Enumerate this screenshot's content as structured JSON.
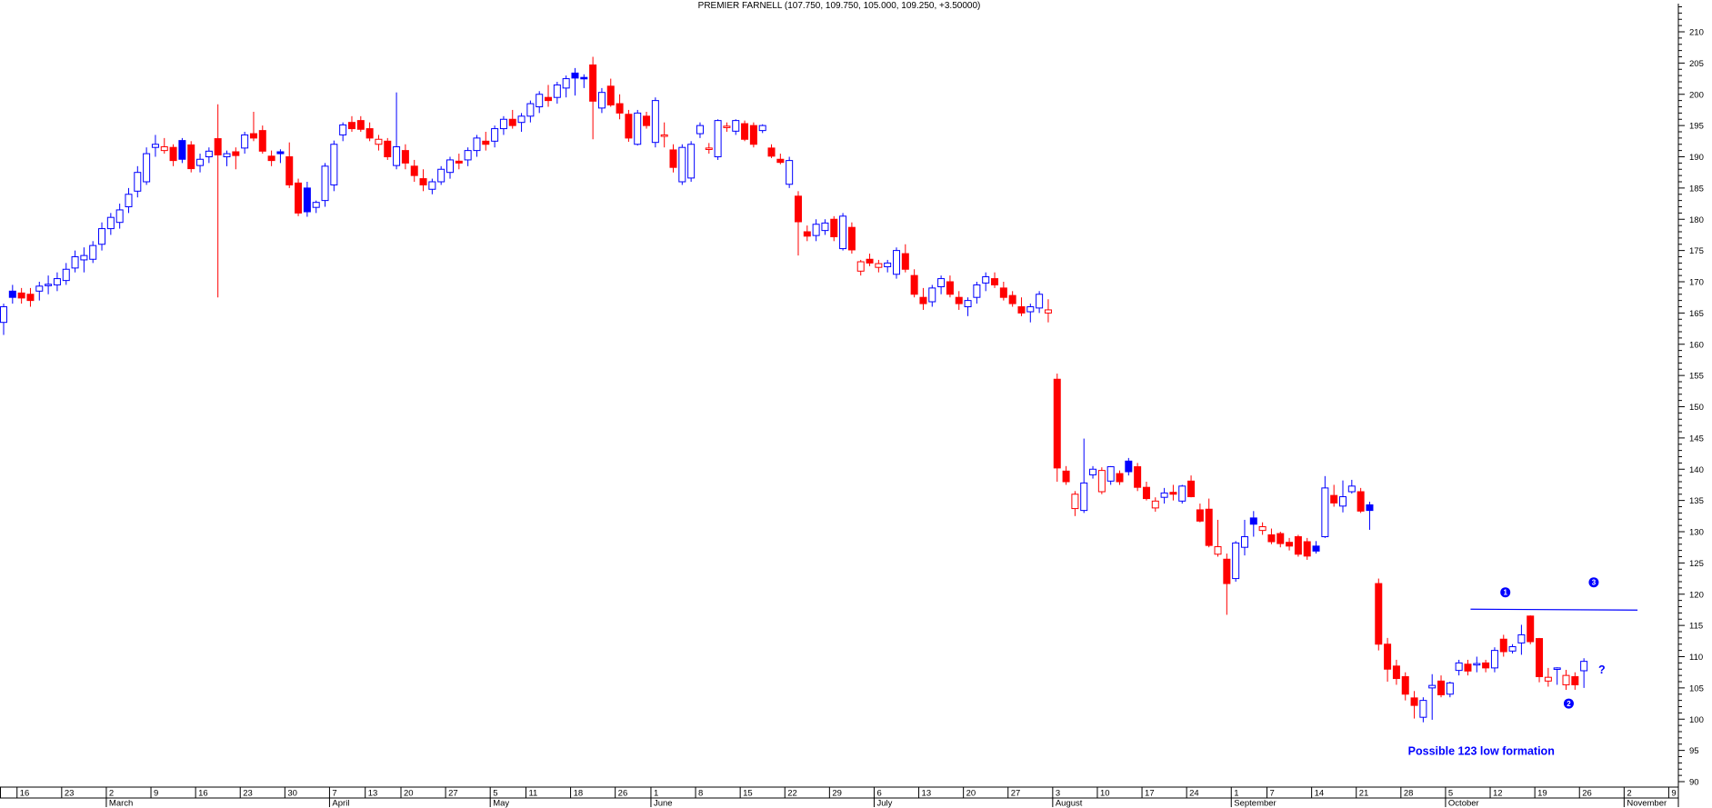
{
  "title": "PREMIER FARNELL (107.750, 109.750, 105.000, 109.250, +3.50000)",
  "colors": {
    "up": "#0000ff",
    "down": "#ff0000",
    "axis": "#000000",
    "background": "#ffffff",
    "annotation": "#0000ff"
  },
  "y_axis": {
    "labels": [
      "210",
      "205",
      "200",
      "195",
      "190",
      "185",
      "180",
      "175",
      "170",
      "165",
      "160",
      "155",
      "150",
      "145",
      "140",
      "135",
      "130",
      "125",
      "120",
      "115",
      "110",
      "105",
      "100",
      "95",
      "90"
    ],
    "max_price": 210,
    "min_price": 90,
    "major_step": 5,
    "minor_step": 1
  },
  "x_axis": {
    "week_labels": [
      "16",
      "23",
      "2",
      "9",
      "16",
      "23",
      "30",
      "7",
      "13",
      "20",
      "27",
      "5",
      "11",
      "18",
      "26",
      "1",
      "8",
      "15",
      "22",
      "29",
      "6",
      "13",
      "20",
      "27",
      "3",
      "10",
      "17",
      "24",
      "1",
      "7",
      "14",
      "21",
      "28",
      "5",
      "12",
      "19",
      "26",
      "2",
      "9"
    ],
    "week_start_indices": [
      2,
      7,
      12,
      17,
      22,
      27,
      32,
      37,
      41,
      45,
      50,
      55,
      59,
      64,
      69,
      73,
      78,
      83,
      88,
      93,
      98,
      103,
      108,
      113,
      118,
      123,
      128,
      133,
      138,
      142,
      147,
      152,
      157,
      162,
      167,
      172,
      177,
      182,
      187
    ],
    "months": [
      {
        "label": "March",
        "week_index": 2
      },
      {
        "label": "April",
        "week_index": 7
      },
      {
        "label": "May",
        "week_index": 11
      },
      {
        "label": "June",
        "week_index": 15
      },
      {
        "label": "July",
        "week_index": 20
      },
      {
        "label": "August",
        "week_index": 24
      },
      {
        "label": "September",
        "week_index": 28
      },
      {
        "label": "October",
        "week_index": 33
      },
      {
        "label": "November",
        "week_index": 37
      }
    ]
  },
  "annotations": {
    "resistance_line": {
      "from_index": 164.3,
      "to_index": 183,
      "price": 117.6
    },
    "markers": [
      {
        "label": "1",
        "index": 168.2,
        "price": 120.3
      },
      {
        "label": "3",
        "index": 178.1,
        "price": 121.9
      },
      {
        "label": "2",
        "index": 175.3,
        "price": 102.5
      }
    ],
    "question_mark": {
      "text": "?",
      "index": 179,
      "price": 107.9
    },
    "note": {
      "text": "Possible 123 low formation",
      "index": 157.3,
      "price": 94.9
    }
  },
  "chart_data": {
    "type": "candlestick",
    "symbol": "PREMIER FARNELL",
    "last_values": {
      "open": 107.75,
      "high": 109.75,
      "low": 105.0,
      "close": 109.25,
      "change": 3.5
    },
    "ohlc": [
      [
        163.5,
        166.5,
        161.5,
        166
      ],
      [
        168.5,
        169.5,
        166.5,
        167.5
      ],
      [
        168.2,
        169,
        166.5,
        167.4
      ],
      [
        168,
        169,
        166,
        167
      ],
      [
        168.5,
        170,
        167,
        169.3
      ],
      [
        169.4,
        171,
        168,
        169.6
      ],
      [
        169.5,
        171.5,
        168.5,
        170.5
      ],
      [
        170.2,
        173,
        169.5,
        172
      ],
      [
        172.2,
        175,
        171.5,
        174
      ],
      [
        173.5,
        175.5,
        171.5,
        174.2
      ],
      [
        173.6,
        176.5,
        173,
        175.8
      ],
      [
        176,
        179.5,
        175,
        178.5
      ],
      [
        178.5,
        181,
        177.5,
        180.3
      ],
      [
        179.5,
        182.5,
        178.5,
        181.5
      ],
      [
        182,
        185,
        181,
        184
      ],
      [
        184.5,
        188.5,
        183.5,
        187.5
      ],
      [
        186,
        191.5,
        185.5,
        190.5
      ],
      [
        191.5,
        193.5,
        190,
        192
      ],
      [
        191,
        193,
        190.5,
        191.6
      ],
      [
        191.5,
        192,
        188.5,
        189.4
      ],
      [
        192.6,
        193,
        189,
        189.6
      ],
      [
        191.9,
        192.5,
        187.5,
        188.1
      ],
      [
        188.6,
        190.5,
        187.5,
        189.6
      ],
      [
        190,
        191.5,
        189,
        190.9
      ],
      [
        192.9,
        198.4,
        167.5,
        190.3
      ],
      [
        190,
        191,
        188.5,
        190.5
      ],
      [
        190.8,
        191.5,
        188,
        190.2
      ],
      [
        191.4,
        194,
        190.5,
        193.5
      ],
      [
        193.7,
        197.2,
        192.5,
        193
      ],
      [
        194.2,
        195,
        190.5,
        190.9
      ],
      [
        190.1,
        191,
        188.5,
        189.4
      ],
      [
        190.8,
        191.2,
        189,
        190.5
      ],
      [
        190,
        192.3,
        185,
        185.5
      ],
      [
        185.8,
        186.5,
        180.5,
        181
      ],
      [
        185,
        186,
        180.4,
        181.2
      ],
      [
        181.9,
        183,
        181,
        182.7
      ],
      [
        183,
        189,
        182,
        188.5
      ],
      [
        185.5,
        192.6,
        184.5,
        192
      ],
      [
        193.5,
        195.5,
        192.5,
        195.1
      ],
      [
        195.5,
        196.5,
        194,
        194.5
      ],
      [
        195.8,
        196.5,
        194,
        194.4
      ],
      [
        194.5,
        195.5,
        192.5,
        193
      ],
      [
        192,
        193.5,
        191,
        192.8
      ],
      [
        192.5,
        193,
        189.5,
        190
      ],
      [
        188.6,
        200.3,
        188,
        191.6
      ],
      [
        191,
        192,
        188,
        189
      ],
      [
        188.5,
        189.5,
        186,
        187
      ],
      [
        186.5,
        188,
        184.5,
        185.5
      ],
      [
        184.8,
        186.5,
        184,
        186
      ],
      [
        186,
        188.5,
        185.5,
        188
      ],
      [
        187.5,
        190,
        186.5,
        189.5
      ],
      [
        189.3,
        190.5,
        188,
        189
      ],
      [
        189.5,
        191.5,
        188.5,
        191
      ],
      [
        191,
        193.5,
        190,
        193
      ],
      [
        192.5,
        194,
        191,
        192
      ],
      [
        192.5,
        195,
        191.5,
        194.5
      ],
      [
        194.5,
        196.5,
        193.5,
        196
      ],
      [
        196,
        197.5,
        194.5,
        195
      ],
      [
        195.5,
        197,
        194,
        196.5
      ],
      [
        196.5,
        199,
        195.5,
        198.5
      ],
      [
        198,
        200.5,
        197,
        200
      ],
      [
        199.5,
        201.5,
        198,
        199
      ],
      [
        199.5,
        202,
        198.5,
        201.5
      ],
      [
        201,
        203,
        199.5,
        202.5
      ],
      [
        203.4,
        204.2,
        199.8,
        202.6
      ],
      [
        202.7,
        203.2,
        201,
        202.6
      ],
      [
        204.7,
        206,
        192.8,
        198.9
      ],
      [
        197.8,
        201,
        197,
        200.3
      ],
      [
        201.3,
        202.5,
        198,
        198.3
      ],
      [
        198.5,
        200,
        196,
        197
      ],
      [
        196.8,
        197.5,
        192.4,
        193
      ],
      [
        192,
        197.5,
        191.8,
        197
      ],
      [
        196.5,
        197.2,
        194.5,
        195
      ],
      [
        192.3,
        199.5,
        191.5,
        199
      ],
      [
        193.5,
        195.5,
        191.5,
        193.5
      ],
      [
        191.1,
        192,
        187.5,
        188.3
      ],
      [
        186,
        192,
        185.5,
        191.5
      ],
      [
        186.6,
        192.5,
        186,
        192
      ],
      [
        193.7,
        195.5,
        193,
        195
      ],
      [
        191.4,
        192.2,
        190.5,
        191.4
      ],
      [
        190,
        196,
        189.5,
        195.8
      ],
      [
        194.9,
        195.5,
        194,
        194.9
      ],
      [
        194.1,
        196,
        193.5,
        195.8
      ],
      [
        195.3,
        195.8,
        192.5,
        192.8
      ],
      [
        195,
        195.5,
        191.5,
        192
      ],
      [
        194.2,
        195.2,
        193.8,
        195
      ],
      [
        191.4,
        192,
        189.8,
        190.1
      ],
      [
        189.6,
        190.5,
        188.8,
        189.1
      ],
      [
        185.6,
        190,
        185,
        189.4
      ],
      [
        183.7,
        184.5,
        174.2,
        179.6
      ],
      [
        178,
        179,
        176.5,
        177.3
      ],
      [
        177.4,
        180,
        176.5,
        179.2
      ],
      [
        178.2,
        180,
        177.5,
        179.4
      ],
      [
        180,
        180.5,
        176.5,
        177.2
      ],
      [
        175.3,
        181,
        175,
        180.5
      ],
      [
        178.7,
        179.5,
        174.5,
        175.1
      ],
      [
        171.7,
        173.5,
        171,
        173.2
      ],
      [
        173.6,
        174.5,
        172.5,
        173
      ],
      [
        172.3,
        173.5,
        171.5,
        172.9
      ],
      [
        172.4,
        173.5,
        171.5,
        173
      ],
      [
        171.2,
        175.5,
        170.5,
        175
      ],
      [
        174.5,
        176,
        171.5,
        172
      ],
      [
        171,
        172,
        167.5,
        168
      ],
      [
        167.5,
        169,
        165.5,
        166.5
      ],
      [
        166.8,
        169.5,
        166,
        169
      ],
      [
        169.2,
        171,
        168,
        170.5
      ],
      [
        170,
        171,
        167.5,
        168
      ],
      [
        167.5,
        168.5,
        165.5,
        166.5
      ],
      [
        166,
        167.5,
        164.5,
        167
      ],
      [
        167.5,
        170,
        166.5,
        169.5
      ],
      [
        169.8,
        171.5,
        168.5,
        170.8
      ],
      [
        170.5,
        171.5,
        169,
        169.5
      ],
      [
        169,
        170,
        167,
        167.5
      ],
      [
        167.8,
        168.5,
        166,
        166.5
      ],
      [
        166,
        167.5,
        164.5,
        165
      ],
      [
        165.2,
        166.5,
        163.5,
        166
      ],
      [
        165.8,
        168.5,
        165,
        168
      ],
      [
        165,
        167.2,
        163.5,
        165.5
      ],
      [
        154.4,
        155.3,
        138,
        140.2
      ],
      [
        139.7,
        140.5,
        137.5,
        138
      ],
      [
        133.7,
        136.5,
        132.5,
        136
      ],
      [
        133.4,
        144.9,
        133,
        137.8
      ],
      [
        139.1,
        140.5,
        138.5,
        140
      ],
      [
        136.4,
        140.3,
        136,
        139.8
      ],
      [
        138.1,
        140.5,
        137.5,
        140.4
      ],
      [
        139.3,
        139.8,
        137.5,
        138
      ],
      [
        141.3,
        141.8,
        139,
        139.6
      ],
      [
        140.4,
        141,
        136.5,
        137.1
      ],
      [
        137.1,
        138,
        135,
        135.3
      ],
      [
        133.8,
        135.5,
        133.2,
        134.9
      ],
      [
        135.5,
        137,
        134.5,
        136.2
      ],
      [
        136.3,
        137.5,
        135,
        136
      ],
      [
        134.9,
        137.5,
        134.5,
        137.3
      ],
      [
        138.1,
        139,
        135.5,
        135.6
      ],
      [
        133.5,
        134.5,
        131.5,
        131.7
      ],
      [
        133.6,
        135.3,
        127.5,
        127.8
      ],
      [
        126.4,
        131.9,
        126,
        127.6
      ],
      [
        125.6,
        126.5,
        116.7,
        121.7
      ],
      [
        122.5,
        128.5,
        122,
        128.2
      ],
      [
        127.5,
        131.9,
        126.2,
        129.2
      ],
      [
        132.2,
        133.3,
        129.2,
        131.2
      ],
      [
        130.2,
        131.5,
        129.5,
        130.8
      ],
      [
        129.5,
        130.5,
        128,
        128.4
      ],
      [
        129.7,
        130,
        127.5,
        128.1
      ],
      [
        128.3,
        129,
        127,
        127.7
      ],
      [
        129.2,
        129.5,
        126,
        126.4
      ],
      [
        128.4,
        129,
        125.5,
        126.1
      ],
      [
        127.7,
        128.5,
        126.5,
        126.9
      ],
      [
        129.2,
        138.9,
        129,
        137
      ],
      [
        135.8,
        137.5,
        134,
        134.6
      ],
      [
        134.1,
        138.2,
        133.1,
        135.6
      ],
      [
        136.4,
        138.3,
        136.1,
        137.3
      ],
      [
        136.4,
        137,
        133,
        133.3
      ],
      [
        134.3,
        134.8,
        130.3,
        133.4
      ],
      [
        121.7,
        122.5,
        111,
        112
      ],
      [
        112,
        113,
        106,
        108
      ],
      [
        108.5,
        109.5,
        105.5,
        106.5
      ],
      [
        106.8,
        107.5,
        103,
        104
      ],
      [
        103.4,
        104.5,
        100.1,
        102.2
      ],
      [
        100.3,
        103.5,
        99.5,
        103
      ],
      [
        105,
        107.2,
        99.9,
        105.4
      ],
      [
        106.1,
        107,
        103.5,
        103.9
      ],
      [
        104,
        106,
        103.5,
        105.8
      ],
      [
        107.8,
        109.5,
        107,
        109
      ],
      [
        108.8,
        109.5,
        107,
        107.7
      ],
      [
        108.8,
        110,
        107.5,
        108.9
      ],
      [
        109,
        109.5,
        107.5,
        108.2
      ],
      [
        108.2,
        111.5,
        107.5,
        111
      ],
      [
        112.8,
        113.5,
        110,
        110.8
      ],
      [
        110.9,
        112,
        110.5,
        111.6
      ],
      [
        112.2,
        115.1,
        110.3,
        113.5
      ],
      [
        116.5,
        116.6,
        112,
        112.4
      ],
      [
        112.9,
        113,
        105.9,
        106.8
      ],
      [
        106.1,
        108.2,
        105.2,
        106.7
      ],
      [
        108.2,
        108.3,
        105.5,
        108.2
      ],
      [
        105.5,
        107.9,
        104.7,
        107
      ],
      [
        106.8,
        107.5,
        104.7,
        105.5
      ],
      [
        107.75,
        109.75,
        105,
        109.25
      ]
    ]
  }
}
